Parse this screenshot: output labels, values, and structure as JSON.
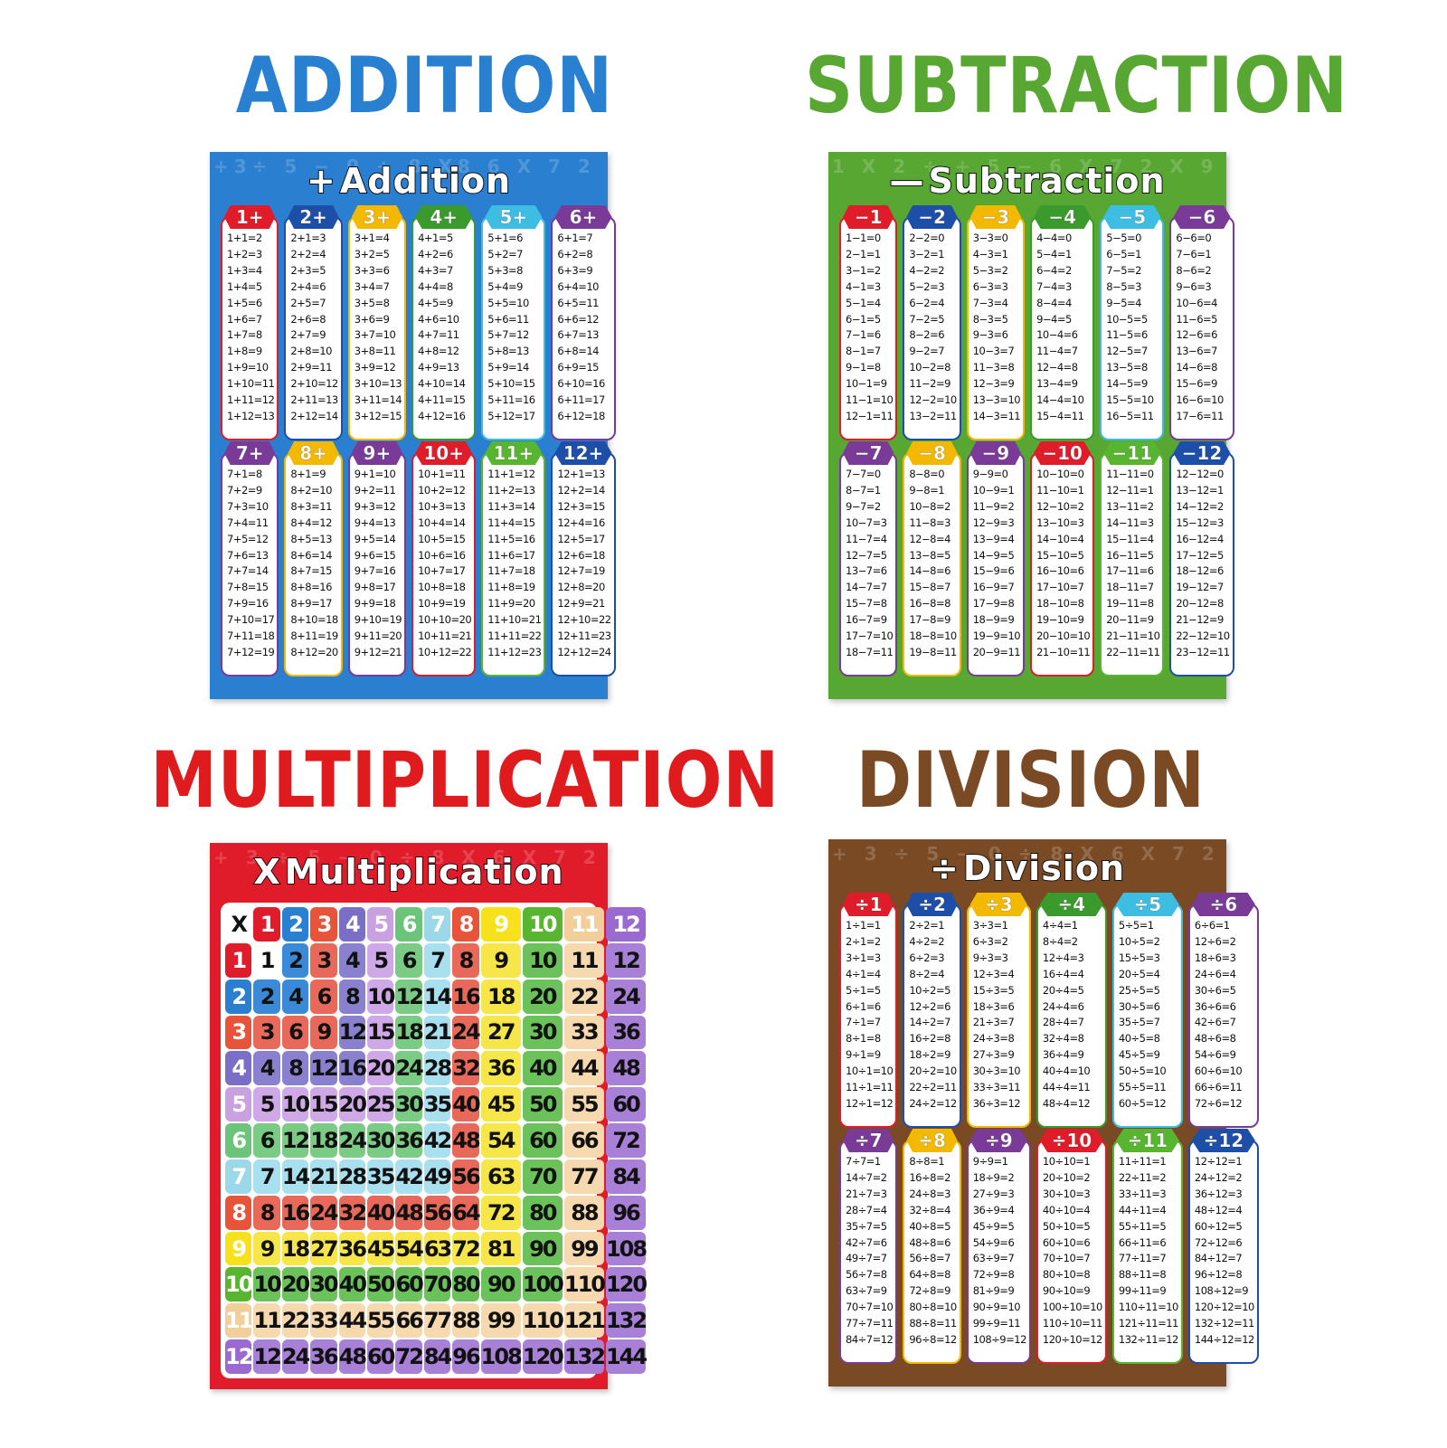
{
  "titles": {
    "addition": "ADDITION",
    "subtraction": "SUBTRACTION",
    "multiplication": "MULTIPLICATION",
    "division": "DIVISION"
  },
  "colors": {
    "addition": "#2a80d0",
    "subtraction": "#58a732",
    "multiplication": "#e01b1d",
    "division": "#7a4a25"
  },
  "col_colors": [
    "#e01b2a",
    "#1d4ea8",
    "#f2b900",
    "#3a9a2c",
    "#3dbde2",
    "#7a3a98",
    "#7a3a98",
    "#f2b900",
    "#7a3a98",
    "#e01b2a",
    "#58b52f",
    "#1d4ea8"
  ],
  "posters": {
    "addition": {
      "symbol": "+",
      "title": "Addition",
      "headers": [
        "1+",
        "2+",
        "3+",
        "4+",
        "5+",
        "6+",
        "7+",
        "8+",
        "9+",
        "10+",
        "11+",
        "12+"
      ],
      "facts": [
        [
          "1+1=2",
          "1+2=3",
          "1+3=4",
          "1+4=5",
          "1+5=6",
          "1+6=7",
          "1+7=8",
          "1+8=9",
          "1+9=10",
          "1+10=11",
          "1+11=12",
          "1+12=13"
        ],
        [
          "2+1=3",
          "2+2=4",
          "2+3=5",
          "2+4=6",
          "2+5=7",
          "2+6=8",
          "2+7=9",
          "2+8=10",
          "2+9=11",
          "2+10=12",
          "2+11=13",
          "2+12=14"
        ],
        [
          "3+1=4",
          "3+2=5",
          "3+3=6",
          "3+4=7",
          "3+5=8",
          "3+6=9",
          "3+7=10",
          "3+8=11",
          "3+9=12",
          "3+10=13",
          "3+11=14",
          "3+12=15"
        ],
        [
          "4+1=5",
          "4+2=6",
          "4+3=7",
          "4+4=8",
          "4+5=9",
          "4+6=10",
          "4+7=11",
          "4+8=12",
          "4+9=13",
          "4+10=14",
          "4+11=15",
          "4+12=16"
        ],
        [
          "5+1=6",
          "5+2=7",
          "5+3=8",
          "5+4=9",
          "5+5=10",
          "5+6=11",
          "5+7=12",
          "5+8=13",
          "5+9=14",
          "5+10=15",
          "5+11=16",
          "5+12=17"
        ],
        [
          "6+1=7",
          "6+2=8",
          "6+3=9",
          "6+4=10",
          "6+5=11",
          "6+6=12",
          "6+7=13",
          "6+8=14",
          "6+9=15",
          "6+10=16",
          "6+11=17",
          "6+12=18"
        ],
        [
          "7+1=8",
          "7+2=9",
          "7+3=10",
          "7+4=11",
          "7+5=12",
          "7+6=13",
          "7+7=14",
          "7+8=15",
          "7+9=16",
          "7+10=17",
          "7+11=18",
          "7+12=19"
        ],
        [
          "8+1=9",
          "8+2=10",
          "8+3=11",
          "8+4=12",
          "8+5=13",
          "8+6=14",
          "8+7=15",
          "8+8=16",
          "8+9=17",
          "8+10=18",
          "8+11=19",
          "8+12=20"
        ],
        [
          "9+1=10",
          "9+2=11",
          "9+3=12",
          "9+4=13",
          "9+5=14",
          "9+6=15",
          "9+7=16",
          "9+8=17",
          "9+9=18",
          "9+10=19",
          "9+11=20",
          "9+12=21"
        ],
        [
          "10+1=11",
          "10+2=12",
          "10+3=13",
          "10+4=14",
          "10+5=15",
          "10+6=16",
          "10+7=17",
          "10+8=18",
          "10+9=19",
          "10+10=20",
          "10+11=21",
          "10+12=22"
        ],
        [
          "11+1=12",
          "11+2=13",
          "11+3=14",
          "11+4=15",
          "11+5=16",
          "11+6=17",
          "11+7=18",
          "11+8=19",
          "11+9=20",
          "11+10=21",
          "11+11=22",
          "11+12=23"
        ],
        [
          "12+1=13",
          "12+2=14",
          "12+3=15",
          "12+4=16",
          "12+5=17",
          "12+6=18",
          "12+7=19",
          "12+8=20",
          "12+9=21",
          "12+10=22",
          "12+11=23",
          "12+12=24"
        ]
      ]
    },
    "subtraction": {
      "symbol": "—",
      "title": "Subtraction",
      "headers": [
        "−1",
        "−2",
        "−3",
        "−4",
        "−5",
        "−6",
        "−7",
        "−8",
        "−9",
        "−10",
        "−11",
        "−12"
      ],
      "facts": [
        [
          "1−1=0",
          "2−1=1",
          "3−1=2",
          "4−1=3",
          "5−1=4",
          "6−1=5",
          "7−1=6",
          "8−1=7",
          "9−1=8",
          "10−1=9",
          "11−1=10",
          "12−1=11"
        ],
        [
          "2−2=0",
          "3−2=1",
          "4−2=2",
          "5−2=3",
          "6−2=4",
          "7−2=5",
          "8−2=6",
          "9−2=7",
          "10−2=8",
          "11−2=9",
          "12−2=10",
          "13−2=11"
        ],
        [
          "3−3=0",
          "4−3=1",
          "5−3=2",
          "6−3=3",
          "7−3=4",
          "8−3=5",
          "9−3=6",
          "10−3=7",
          "11−3=8",
          "12−3=9",
          "13−3=10",
          "14−3=11"
        ],
        [
          "4−4=0",
          "5−4=1",
          "6−4=2",
          "7−4=3",
          "8−4=4",
          "9−4=5",
          "10−4=6",
          "11−4=7",
          "12−4=8",
          "13−4=9",
          "14−4=10",
          "15−4=11"
        ],
        [
          "5−5=0",
          "6−5=1",
          "7−5=2",
          "8−5=3",
          "9−5=4",
          "10−5=5",
          "11−5=6",
          "12−5=7",
          "13−5=8",
          "14−5=9",
          "15−5=10",
          "16−5=11"
        ],
        [
          "6−6=0",
          "7−6=1",
          "8−6=2",
          "9−6=3",
          "10−6=4",
          "11−6=5",
          "12−6=6",
          "13−6=7",
          "14−6=8",
          "15−6=9",
          "16−6=10",
          "17−6=11"
        ],
        [
          "7−7=0",
          "8−7=1",
          "9−7=2",
          "10−7=3",
          "11−7=4",
          "12−7=5",
          "13−7=6",
          "14−7=7",
          "15−7=8",
          "16−7=9",
          "17−7=10",
          "18−7=11"
        ],
        [
          "8−8=0",
          "9−8=1",
          "10−8=2",
          "11−8=3",
          "12−8=4",
          "13−8=5",
          "14−8=6",
          "15−8=7",
          "16−8=8",
          "17−8=9",
          "18−8=10",
          "19−8=11"
        ],
        [
          "9−9=0",
          "10−9=1",
          "11−9=2",
          "12−9=3",
          "13−9=4",
          "14−9=5",
          "15−9=6",
          "16−9=7",
          "17−9=8",
          "18−9=9",
          "19−9=10",
          "20−9=11"
        ],
        [
          "10−10=0",
          "11−10=1",
          "12−10=2",
          "13−10=3",
          "14−10=4",
          "15−10=5",
          "16−10=6",
          "17−10=7",
          "18−10=8",
          "19−10=9",
          "20−10=10",
          "21−10=11"
        ],
        [
          "11−11=0",
          "12−11=1",
          "13−11=2",
          "14−11=3",
          "15−11=4",
          "16−11=5",
          "17−11=6",
          "18−11=7",
          "19−11=8",
          "20−11=9",
          "21−11=10",
          "22−11=11"
        ],
        [
          "12−12=0",
          "13−12=1",
          "14−12=2",
          "15−12=3",
          "16−12=4",
          "17−12=5",
          "18−12=6",
          "19−12=7",
          "20−12=8",
          "21−12=9",
          "22−12=10",
          "23−12=11"
        ]
      ]
    },
    "division": {
      "symbol": "÷",
      "title": "Division",
      "headers": [
        "÷1",
        "÷2",
        "÷3",
        "÷4",
        "÷5",
        "÷6",
        "÷7",
        "÷8",
        "÷9",
        "÷10",
        "÷11",
        "÷12"
      ],
      "facts": [
        [
          "1÷1=1",
          "2÷1=2",
          "3÷1=3",
          "4÷1=4",
          "5÷1=5",
          "6÷1=6",
          "7÷1=7",
          "8÷1=8",
          "9÷1=9",
          "10÷1=10",
          "11÷1=11",
          "12÷1=12"
        ],
        [
          "2÷2=1",
          "4÷2=2",
          "6÷2=3",
          "8÷2=4",
          "10÷2=5",
          "12÷2=6",
          "14÷2=7",
          "16÷2=8",
          "18÷2=9",
          "20÷2=10",
          "22÷2=11",
          "24÷2=12"
        ],
        [
          "3÷3=1",
          "6÷3=2",
          "9÷3=3",
          "12÷3=4",
          "15÷3=5",
          "18÷3=6",
          "21÷3=7",
          "24÷3=8",
          "27÷3=9",
          "30÷3=10",
          "33÷3=11",
          "36÷3=12"
        ],
        [
          "4÷4=1",
          "8÷4=2",
          "12÷4=3",
          "16÷4=4",
          "20÷4=5",
          "24÷4=6",
          "28÷4=7",
          "32÷4=8",
          "36÷4=9",
          "40÷4=10",
          "44÷4=11",
          "48÷4=12"
        ],
        [
          "5÷5=1",
          "10÷5=2",
          "15÷5=3",
          "20÷5=4",
          "25÷5=5",
          "30÷5=6",
          "35÷5=7",
          "40÷5=8",
          "45÷5=9",
          "50÷5=10",
          "55÷5=11",
          "60÷5=12"
        ],
        [
          "6÷6=1",
          "12÷6=2",
          "18÷6=3",
          "24÷6=4",
          "30÷6=5",
          "36÷6=6",
          "42÷6=7",
          "48÷6=8",
          "54÷6=9",
          "60÷6=10",
          "66÷6=11",
          "72÷6=12"
        ],
        [
          "7÷7=1",
          "14÷7=2",
          "21÷7=3",
          "28÷7=4",
          "35÷7=5",
          "42÷7=6",
          "49÷7=7",
          "56÷7=8",
          "63÷7=9",
          "70÷7=10",
          "77÷7=11",
          "84÷7=12"
        ],
        [
          "8÷8=1",
          "16÷8=2",
          "24÷8=3",
          "32÷8=4",
          "40÷8=5",
          "48÷8=6",
          "56÷8=7",
          "64÷8=8",
          "72÷8=9",
          "80÷8=10",
          "88÷8=11",
          "96÷8=12"
        ],
        [
          "9÷9=1",
          "18÷9=2",
          "27÷9=3",
          "36÷9=4",
          "45÷9=5",
          "54÷9=6",
          "63÷9=7",
          "72÷9=8",
          "81÷9=9",
          "90÷9=10",
          "99÷9=11",
          "108÷9=12"
        ],
        [
          "10÷10=1",
          "20÷10=2",
          "30÷10=3",
          "40÷10=4",
          "50÷10=5",
          "60÷10=6",
          "70÷10=7",
          "80÷10=8",
          "90÷10=9",
          "100÷10=10",
          "110÷10=11",
          "120÷10=12"
        ],
        [
          "11÷11=1",
          "22÷11=2",
          "33÷11=3",
          "44÷11=4",
          "55÷11=5",
          "66÷11=6",
          "77÷11=7",
          "88÷11=8",
          "99÷11=9",
          "110÷11=10",
          "121÷11=11",
          "132÷11=12"
        ],
        [
          "12÷12=1",
          "24÷12=2",
          "36÷12=3",
          "48÷12=4",
          "60÷12=5",
          "72÷12=6",
          "84÷12=7",
          "96÷12=8",
          "108÷12=9",
          "120÷12=10",
          "132÷12=11",
          "144÷12=12"
        ]
      ]
    },
    "multiplication": {
      "symbol": "X",
      "title": "Multiplication",
      "corner": "X",
      "factors": [
        1,
        2,
        3,
        4,
        5,
        6,
        7,
        8,
        9,
        10,
        11,
        12
      ],
      "header_colors": [
        "#e01b2a",
        "#2a7fd0",
        "#e8543a",
        "#7a6ec8",
        "#c9a0e0",
        "#6cc47a",
        "#9ad8ea",
        "#e8543a",
        "#f7e11a",
        "#58b52f",
        "#f2cf9a",
        "#9a6ad0"
      ],
      "cell_colors": [
        "#ffffff",
        "#3a8ad8",
        "#e8685a",
        "#8a80d0",
        "#cfa8e8",
        "#7acb84",
        "#a8e0ef",
        "#e8685a",
        "#f7e64a",
        "#6cc25a",
        "#f6d9ae",
        "#a880d8"
      ]
    }
  }
}
